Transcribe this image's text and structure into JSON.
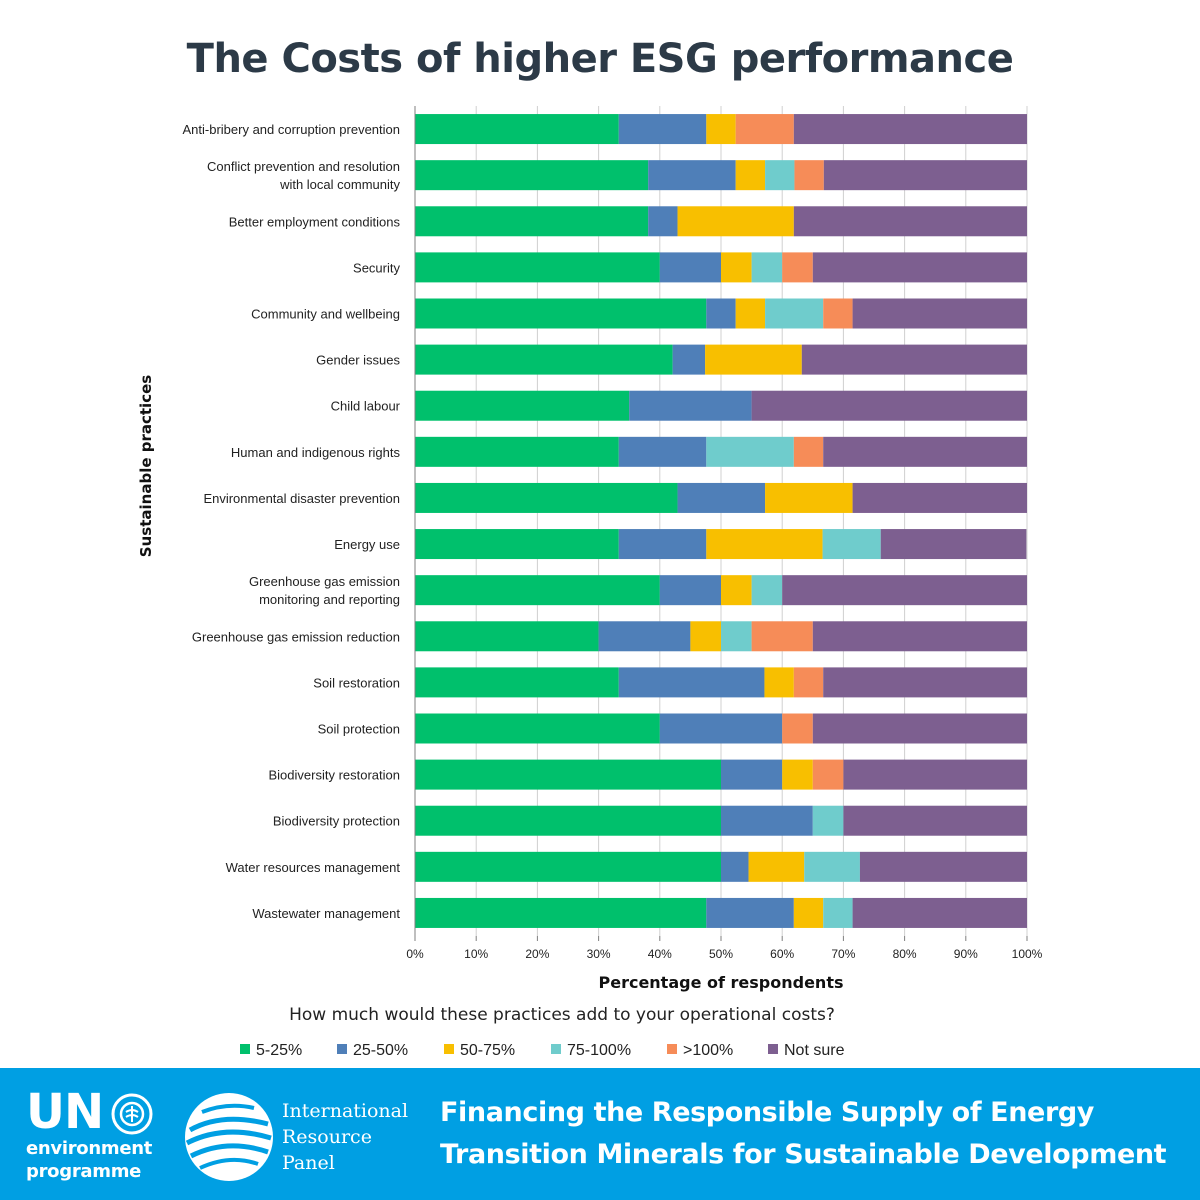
{
  "page": {
    "title": "The Costs of higher ESG performance"
  },
  "chart_data": {
    "type": "bar",
    "orientation": "horizontal",
    "stacked": true,
    "title": "The Costs of higher ESG performance",
    "xlabel": "Percentage of respondents",
    "ylabel": "Sustainable practices",
    "xlim": [
      0,
      100
    ],
    "x_ticks": [
      "0%",
      "10%",
      "20%",
      "30%",
      "40%",
      "50%",
      "60%",
      "70%",
      "80%",
      "90%",
      "100%"
    ],
    "grid": true,
    "legend_title": "How much would these practices add to your operational costs?",
    "legend_position": "bottom",
    "categories": [
      [
        "Anti-bribery and corruption prevention"
      ],
      [
        "Conflict prevention and resolution",
        "with local community"
      ],
      [
        "Better employment conditions"
      ],
      [
        "Security"
      ],
      [
        "Community and wellbeing"
      ],
      [
        "Gender issues"
      ],
      [
        "Child labour"
      ],
      [
        "Human and indigenous rights"
      ],
      [
        "Environmental disaster prevention"
      ],
      [
        "Energy use"
      ],
      [
        "Greenhouse gas emission",
        "monitoring and reporting"
      ],
      [
        "Greenhouse gas emission reduction"
      ],
      [
        "Soil restoration"
      ],
      [
        "Soil protection"
      ],
      [
        "Biodiversity restoration"
      ],
      [
        "Biodiversity protection"
      ],
      [
        "Water resources management"
      ],
      [
        "Wastewater management"
      ]
    ],
    "series": [
      {
        "name": "5-25%",
        "color": "#00c06c",
        "values": [
          33.3,
          38.1,
          38.1,
          40,
          47.6,
          42.1,
          35,
          33.3,
          42.9,
          33.3,
          40,
          30,
          33.3,
          40,
          50,
          50,
          50,
          47.6
        ]
      },
      {
        "name": "25-50%",
        "color": "#4f7fb8",
        "values": [
          14.3,
          14.3,
          4.8,
          10,
          4.8,
          5.3,
          20,
          14.3,
          14.3,
          14.3,
          10,
          15,
          23.8,
          20,
          10,
          15,
          4.5,
          14.3
        ]
      },
      {
        "name": "50-75%",
        "color": "#f8bf00",
        "values": [
          4.8,
          4.8,
          19,
          5,
          4.8,
          15.8,
          0,
          0,
          14.3,
          19,
          5,
          5,
          4.8,
          0,
          5,
          0,
          9.1,
          4.8
        ]
      },
      {
        "name": "75-100%",
        "color": "#6fcccc",
        "values": [
          0,
          4.8,
          0,
          5,
          9.5,
          0,
          0,
          14.3,
          0,
          9.5,
          5,
          5,
          0,
          0,
          0,
          5,
          9.1,
          4.8
        ]
      },
      {
        "name": ">100%",
        "color": "#f68c58",
        "values": [
          9.5,
          4.8,
          0,
          5,
          4.8,
          0,
          0,
          4.8,
          0,
          0,
          0,
          10,
          4.8,
          5,
          5,
          0,
          0,
          0
        ]
      },
      {
        "name": "Not sure",
        "color": "#7d5f90",
        "values": [
          38.1,
          33.3,
          38.1,
          35,
          28.6,
          36.8,
          45,
          33.3,
          28.6,
          23.8,
          40,
          35,
          33.3,
          35,
          30,
          30,
          27.3,
          28.6
        ]
      }
    ]
  },
  "footer": {
    "un_text": "UN",
    "env_line1": "environment",
    "env_line2": "programme",
    "irp_line1": "International",
    "irp_line2": "Resource",
    "irp_line3": "Panel",
    "title_line1": "Financing the Responsible Supply of Energy",
    "title_line2": "Transition Minerals for Sustainable Development"
  }
}
